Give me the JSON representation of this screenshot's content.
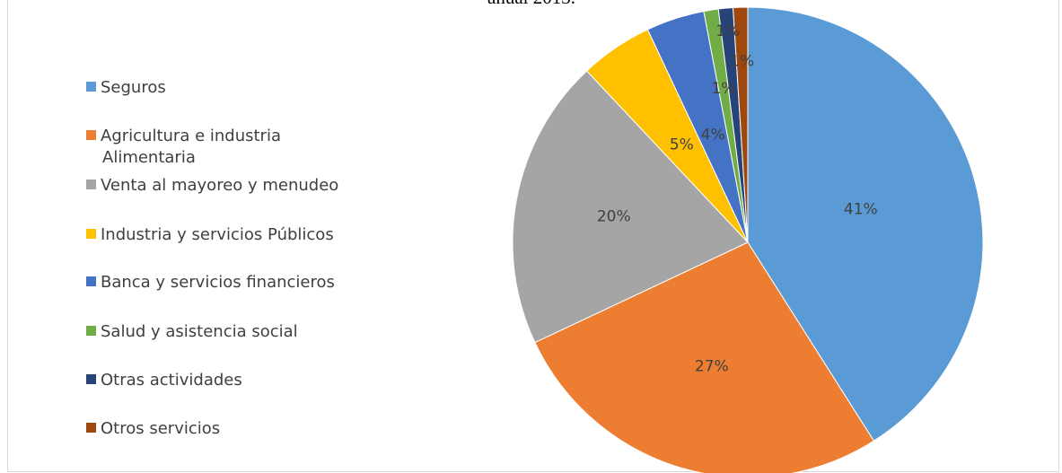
{
  "chart_data": {
    "type": "pie",
    "title": "anual 2013.",
    "categories": [
      "Seguros",
      "Agricultura e industria Alimentaria",
      "Venta al mayoreo y menudeo",
      "Industria y servicios Públicos",
      "Banca y servicios financieros",
      "Salud y asistencia social",
      "Otras actividades",
      "Otros servicios"
    ],
    "values": [
      41,
      27,
      20,
      5,
      4,
      1,
      1,
      1
    ],
    "value_labels": [
      "41%",
      "27%",
      "20%",
      "5%",
      "4%",
      "1%",
      "1%",
      "1%"
    ],
    "colors": [
      "#5b9bd5",
      "#ed7d31",
      "#a5a5a5",
      "#ffc000",
      "#4472c4",
      "#70ad47",
      "#264478",
      "#9e480e"
    ],
    "legend": "left"
  }
}
